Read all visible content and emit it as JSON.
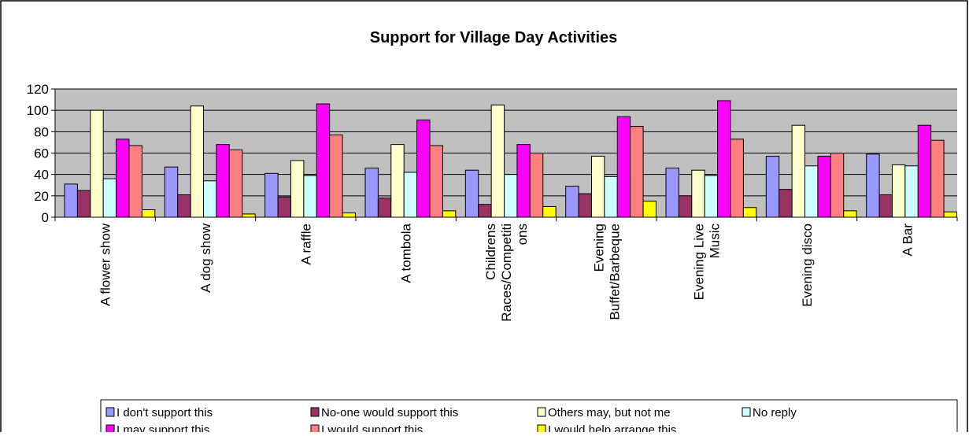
{
  "chart_data": {
    "type": "bar",
    "title": "Support for Village Day Activities",
    "xlabel": "",
    "ylabel": "",
    "ylim": [
      0,
      120
    ],
    "y_ticks": [
      0,
      20,
      40,
      60,
      80,
      100,
      120
    ],
    "grid": true,
    "legend_position": "bottom",
    "plot_background": "#c0c0c0",
    "categories": [
      [
        "A flower show"
      ],
      [
        "A dog show"
      ],
      [
        "A raffle"
      ],
      [
        "A tombola"
      ],
      [
        "Childrens",
        "Races/Competiti",
        "ons"
      ],
      [
        "Evening",
        "Buffet/Barbeque"
      ],
      [
        "Evening Live",
        "Music"
      ],
      [
        "Evening disco"
      ],
      [
        "A Bar"
      ]
    ],
    "series": [
      {
        "name": "I don't support this",
        "color": "#9999ff",
        "values": [
          31,
          47,
          41,
          46,
          44,
          29,
          46,
          57,
          59
        ]
      },
      {
        "name": "No-one would support this",
        "color": "#993366",
        "values": [
          25,
          21,
          19,
          18,
          12,
          22,
          20,
          26,
          21
        ]
      },
      {
        "name": "Others may, but not me",
        "color": "#ffffcc",
        "values": [
          100,
          104,
          53,
          68,
          105,
          57,
          44,
          86,
          49
        ]
      },
      {
        "name": "No reply",
        "color": "#ccffff",
        "values": [
          36,
          34,
          39,
          42,
          40,
          38,
          39,
          48,
          48
        ]
      },
      {
        "name": "I may support this",
        "color": "#ff00ff",
        "values": [
          73,
          68,
          106,
          91,
          68,
          94,
          109,
          57,
          86
        ]
      },
      {
        "name": "I would support this",
        "color": "#ff8080",
        "values": [
          67,
          63,
          77,
          67,
          60,
          85,
          73,
          60,
          72
        ]
      },
      {
        "name": "I would help arrange this",
        "color": "#ffff00",
        "values": [
          7,
          3,
          4,
          6,
          10,
          15,
          9,
          6,
          5
        ]
      }
    ]
  }
}
